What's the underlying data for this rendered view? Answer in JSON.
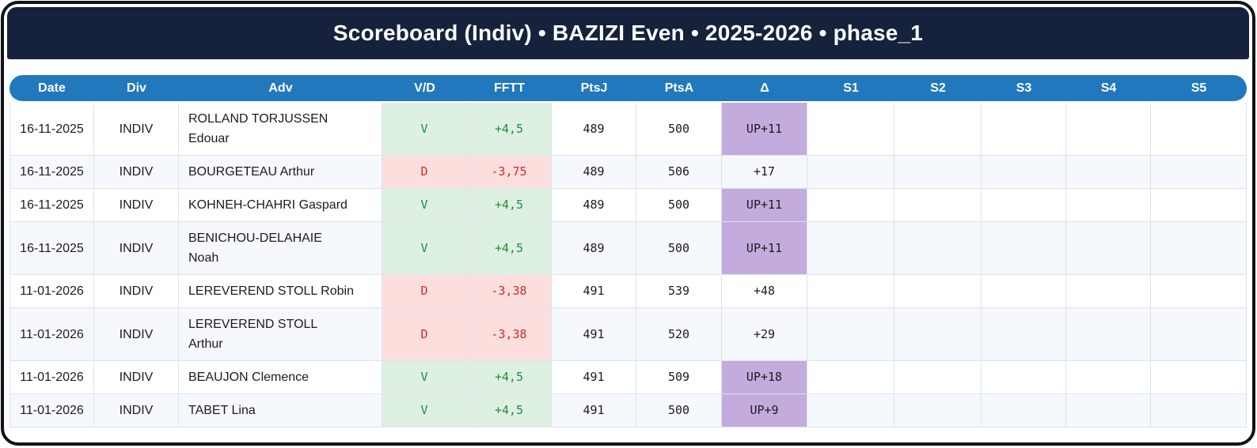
{
  "header": {
    "title": "Scoreboard (Indiv) • BAZIZI Even • 2025-2026 • phase_1"
  },
  "colors": {
    "navy": "#16213c",
    "header_blue": "#2278bc",
    "stripe": "#f5f8fc",
    "grid_line": "#dce3ef",
    "win_bg": "#def0e2",
    "win_text": "#1e8e3e",
    "loss_bg": "#fcdfdd",
    "loss_text": "#cd2b2b",
    "delta_up_bg": "#c3abde"
  },
  "table": {
    "columns": [
      {
        "key": "date",
        "label": "Date"
      },
      {
        "key": "div",
        "label": "Div"
      },
      {
        "key": "adv",
        "label": "Adv"
      },
      {
        "key": "vd",
        "label": "V/D"
      },
      {
        "key": "fftt",
        "label": "FFTT"
      },
      {
        "key": "ptsj",
        "label": "PtsJ"
      },
      {
        "key": "ptsa",
        "label": "PtsA"
      },
      {
        "key": "delta",
        "label": "Δ"
      },
      {
        "key": "s1",
        "label": "S1"
      },
      {
        "key": "s2",
        "label": "S2"
      },
      {
        "key": "s3",
        "label": "S3"
      },
      {
        "key": "s4",
        "label": "S4"
      },
      {
        "key": "s5",
        "label": "S5"
      }
    ],
    "rows": [
      {
        "date": "16-11-2025",
        "div": "INDIV",
        "adv": "ROLLAND TORJUSSEN\nEdouar",
        "vd": "V",
        "fftt": "+4,5",
        "ptsj": "489",
        "ptsa": "500",
        "delta": "UP+11",
        "s1": "",
        "s2": "",
        "s3": "",
        "s4": "",
        "s5": ""
      },
      {
        "date": "16-11-2025",
        "div": "INDIV",
        "adv": "BOURGETEAU Arthur",
        "vd": "D",
        "fftt": "-3,75",
        "ptsj": "489",
        "ptsa": "506",
        "delta": "+17",
        "s1": "",
        "s2": "",
        "s3": "",
        "s4": "",
        "s5": ""
      },
      {
        "date": "16-11-2025",
        "div": "INDIV",
        "adv": "KOHNEH-CHAHRI Gaspard",
        "vd": "V",
        "fftt": "+4,5",
        "ptsj": "489",
        "ptsa": "500",
        "delta": "UP+11",
        "s1": "",
        "s2": "",
        "s3": "",
        "s4": "",
        "s5": ""
      },
      {
        "date": "16-11-2025",
        "div": "INDIV",
        "adv": "BENICHOU-DELAHAIE\nNoah",
        "vd": "V",
        "fftt": "+4,5",
        "ptsj": "489",
        "ptsa": "500",
        "delta": "UP+11",
        "s1": "",
        "s2": "",
        "s3": "",
        "s4": "",
        "s5": ""
      },
      {
        "date": "11-01-2026",
        "div": "INDIV",
        "adv": "LEREVEREND STOLL Robin",
        "vd": "D",
        "fftt": "-3,38",
        "ptsj": "491",
        "ptsa": "539",
        "delta": "+48",
        "s1": "",
        "s2": "",
        "s3": "",
        "s4": "",
        "s5": ""
      },
      {
        "date": "11-01-2026",
        "div": "INDIV",
        "adv": "LEREVEREND STOLL\nArthur",
        "vd": "D",
        "fftt": "-3,38",
        "ptsj": "491",
        "ptsa": "520",
        "delta": "+29",
        "s1": "",
        "s2": "",
        "s3": "",
        "s4": "",
        "s5": ""
      },
      {
        "date": "11-01-2026",
        "div": "INDIV",
        "adv": "BEAUJON Clemence",
        "vd": "V",
        "fftt": "+4,5",
        "ptsj": "491",
        "ptsa": "509",
        "delta": "UP+18",
        "s1": "",
        "s2": "",
        "s3": "",
        "s4": "",
        "s5": ""
      },
      {
        "date": "11-01-2026",
        "div": "INDIV",
        "adv": "TABET Lina",
        "vd": "V",
        "fftt": "+4,5",
        "ptsj": "491",
        "ptsa": "500",
        "delta": "UP+9",
        "s1": "",
        "s2": "",
        "s3": "",
        "s4": "",
        "s5": ""
      }
    ]
  }
}
